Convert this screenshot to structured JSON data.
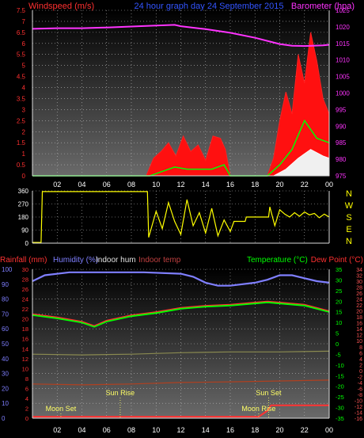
{
  "header": {
    "left": "Windspeed (m/s)",
    "center": "24 hour graph day  24 September 2015",
    "right": "Barometer (hpa)"
  },
  "colors": {
    "wind_axis": "#ff3030",
    "baro_axis": "#ff33ff",
    "grid_tick": "#ffff00",
    "center_title": "#3355ff",
    "humidity": "#7f7fff",
    "temperature": "#00ff00",
    "dewpoint": "#ff3030",
    "temp_axis_right": "#ff5555",
    "indoor_hum": "#e0e0e0",
    "indoor_temp": "#c00000",
    "rainfall": "#ff3333",
    "direction": "#ffff00"
  },
  "chart_data": [
    {
      "type": "line",
      "title": "24 hour graph day  24 September 2015",
      "x_ticks": [
        "02",
        "04",
        "06",
        "08",
        "10",
        "12",
        "14",
        "16",
        "18",
        "20",
        "22",
        "00"
      ],
      "ylabel_left": "Windspeed (m/s)",
      "ylim_left": [
        0,
        7.5
      ],
      "yticks_left": [
        "0",
        "0.5",
        "1",
        "1.5",
        "2",
        "2.5",
        "3",
        "3.5",
        "4",
        "4.5",
        "5",
        "5.5",
        "6",
        "6.5",
        "7",
        "7.5"
      ],
      "ylabel_right": "Barometer (hpa)",
      "ylim_right": [
        975,
        1025
      ],
      "yticks_right": [
        "975",
        "980",
        "985",
        "990",
        "995",
        "1000",
        "1005",
        "1010",
        "1015",
        "1020",
        "1025"
      ],
      "series": [
        {
          "name": "Barometer (hpa)",
          "axis": "right",
          "x": [
            0,
            2,
            4,
            6,
            8,
            10,
            11.5,
            12,
            14,
            16,
            18,
            20,
            21,
            22,
            23.5,
            24
          ],
          "values": [
            1019.4,
            1019.6,
            1019.6,
            1019.8,
            1020.1,
            1020.4,
            1020.6,
            1020.2,
            1019.3,
            1018.2,
            1016.7,
            1014.8,
            1014.3,
            1014.2,
            1014.4,
            1014.6
          ]
        },
        {
          "name": "Windspeed (m/s)",
          "axis": "left",
          "x": [
            0,
            9.2,
            9.8,
            10.4,
            11,
            11.6,
            12.2,
            12.8,
            13.4,
            14,
            14.6,
            15.2,
            15.6,
            16,
            19,
            19.5,
            20,
            20.5,
            21,
            21.5,
            22,
            22.5,
            23,
            23.5,
            24
          ],
          "values": [
            0,
            0,
            0.8,
            1.1,
            1.5,
            0.9,
            1.8,
            1.1,
            1.4,
            0.7,
            1.8,
            1.7,
            1.2,
            0,
            0,
            0.8,
            2.5,
            3.8,
            2.8,
            5.5,
            4.2,
            6.5,
            5.2,
            3.5,
            2.8
          ]
        },
        {
          "name": "Wind gust (m/s)",
          "axis": "left",
          "x": [
            0,
            9.5,
            10.5,
            11.5,
            12.5,
            13.5,
            14.5,
            15.5,
            16,
            19,
            20,
            21,
            22,
            23,
            24
          ],
          "values": [
            0,
            0,
            0.2,
            0.4,
            0.3,
            0.3,
            0.3,
            0.5,
            0,
            0,
            0.5,
            1.2,
            2.5,
            1.7,
            1.5
          ]
        },
        {
          "name": "Average (m/s)",
          "axis": "left",
          "x": [
            0,
            19.5,
            20.5,
            21.5,
            22.5,
            23.5,
            24
          ],
          "values": [
            0,
            0,
            0.3,
            0.8,
            1.2,
            0.9,
            0.8
          ]
        }
      ]
    },
    {
      "type": "line",
      "title": "",
      "right_labels": [
        "N",
        "W",
        "S",
        "E",
        "N"
      ],
      "ylim": [
        0,
        360
      ],
      "yticks": [
        "0",
        "90",
        "180",
        "270",
        "360"
      ],
      "series": [
        {
          "name": "Wind direction",
          "x": [
            0,
            0.7,
            0.8,
            9.3,
            9.4,
            10,
            10.5,
            11,
            11.5,
            12,
            12.5,
            13,
            13.5,
            14,
            14.5,
            15,
            15.5,
            16,
            16.3,
            17.2,
            17.3,
            19.1,
            19.2,
            19.6,
            20,
            20.4,
            20.8,
            21.2,
            21.6,
            22,
            22.4,
            22.8,
            23.2,
            23.6,
            24
          ],
          "values": [
            5,
            5,
            355,
            355,
            40,
            220,
            100,
            280,
            150,
            60,
            300,
            120,
            210,
            70,
            240,
            50,
            160,
            80,
            150,
            150,
            180,
            180,
            250,
            120,
            230,
            200,
            180,
            210,
            185,
            215,
            195,
            205,
            175,
            200,
            180
          ]
        }
      ]
    },
    {
      "type": "line",
      "title": "",
      "labels_top": [
        "Rainfall (mm)",
        "Humidity (%)",
        "Indoor hum",
        "Indoor temp",
        "Temperature (°C)",
        "Dew Point (°C)"
      ],
      "annotations": [
        {
          "label": "Moon Set",
          "hour": 2.3
        },
        {
          "label": "Sun Rise",
          "hour": 7.1
        },
        {
          "label": "Moon Rise",
          "hour": 18.3
        },
        {
          "label": "Sun Set",
          "hour": 19.1
        }
      ],
      "humidity_axis": {
        "ylim": [
          0,
          100
        ],
        "ticks": [
          "0",
          "10",
          "20",
          "30",
          "40",
          "50",
          "60",
          "70",
          "80",
          "90",
          "100"
        ]
      },
      "rain_axis": {
        "ylim": [
          0,
          30
        ],
        "ticks": [
          "0",
          "2",
          "4",
          "6",
          "8",
          "10",
          "12",
          "14",
          "16",
          "18",
          "20",
          "22",
          "24",
          "26",
          "28",
          "30"
        ]
      },
      "temp_axis_right1": {
        "ylim": [
          -35,
          35
        ],
        "ticks": [
          "-35",
          "-30",
          "-25",
          "-20",
          "-15",
          "-10",
          "-5",
          "0",
          "5",
          "10",
          "15",
          "20",
          "25",
          "30",
          "35"
        ]
      },
      "temp_axis_right2": {
        "ylim": [
          -16,
          34
        ],
        "ticks": [
          "-16",
          "-14",
          "-12",
          "-10",
          "-8",
          "-6",
          "-4",
          "-2",
          "0",
          "2",
          "4",
          "6",
          "8",
          "10",
          "12",
          "14",
          "16",
          "18",
          "20",
          "22",
          "24",
          "26",
          "28",
          "30",
          "32",
          "34"
        ]
      },
      "series": [
        {
          "name": "Humidity (%)",
          "axis": "humidity",
          "x": [
            0,
            1,
            3,
            6,
            9,
            12,
            13,
            14,
            15,
            16,
            18,
            19,
            20,
            21,
            22,
            23,
            24
          ],
          "values": [
            92,
            96,
            98,
            98,
            98,
            97,
            95,
            91,
            89,
            89,
            91,
            93,
            96,
            96,
            94,
            92,
            91
          ]
        },
        {
          "name": "Temperature (°C)",
          "axis": "temp1",
          "x": [
            0,
            2,
            4,
            5,
            6,
            8,
            10,
            12,
            14,
            16,
            18,
            19,
            20,
            22,
            24
          ],
          "values": [
            13.5,
            12,
            10,
            8,
            10.5,
            13,
            14.5,
            16.5,
            17.5,
            18,
            19,
            19.5,
            19,
            18,
            15
          ]
        },
        {
          "name": "Dew Point (°C)",
          "axis": "temp1",
          "x": [
            0,
            2,
            4,
            5,
            6,
            8,
            10,
            12,
            14,
            16,
            18,
            19,
            20,
            22,
            24
          ],
          "values": [
            14,
            12.5,
            10.5,
            8.5,
            11,
            13.5,
            15,
            17,
            18,
            18.5,
            19.5,
            20,
            19.5,
            18.5,
            15.5
          ]
        },
        {
          "name": "Indoor hum",
          "axis": "humidity",
          "x": [
            0,
            4,
            8,
            12,
            16,
            20,
            24
          ],
          "values": [
            43,
            42.5,
            43,
            44,
            44.5,
            44.5,
            45
          ]
        },
        {
          "name": "Indoor temp",
          "axis": "temp2",
          "x": [
            0,
            4,
            8,
            12,
            16,
            20,
            24
          ],
          "values": [
            -4.5,
            -4.8,
            -4.5,
            -4,
            -3.8,
            -3.5,
            -3.2
          ]
        },
        {
          "name": "Rainfall (mm)",
          "axis": "rain",
          "x": [
            0,
            18.3,
            19.0,
            19.3,
            24
          ],
          "values": [
            0.3,
            0.3,
            1.5,
            2.6,
            2.6
          ]
        }
      ]
    }
  ]
}
